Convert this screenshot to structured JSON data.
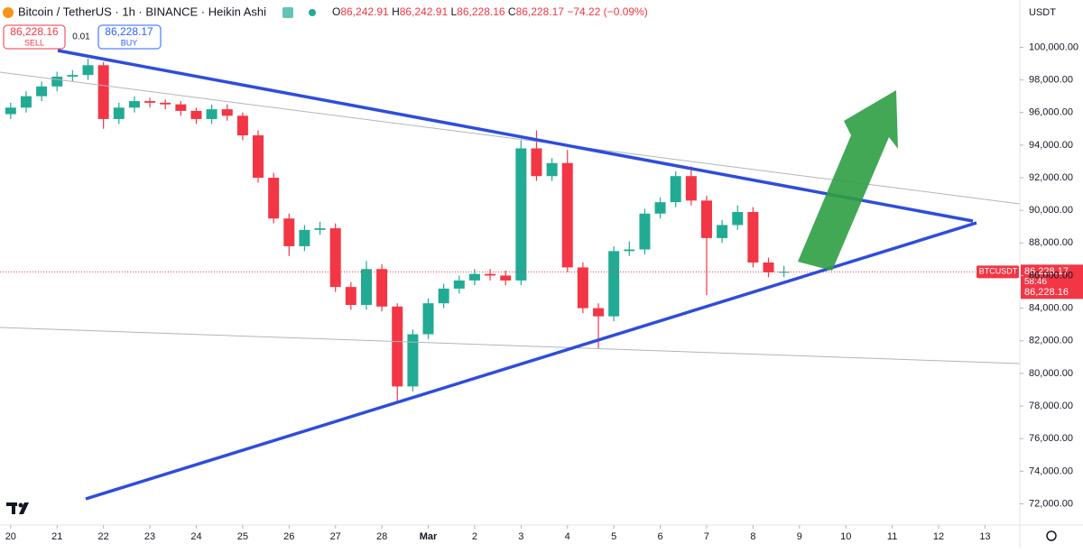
{
  "ui": {
    "symbol": "Bitcoin / TetherUS · 1h · BINANCE · Heikin Ashi",
    "ohlc": [
      {
        "key": "O",
        "text": "86,242.91"
      },
      {
        "key": "H",
        "text": "86,242.91"
      },
      {
        "key": "L",
        "text": "86,228.16"
      },
      {
        "key": "C",
        "text": "86,228.17"
      }
    ],
    "change": "−74.22 (−0.09%)",
    "sell_price": "86,228.16",
    "sell_label": "SELL",
    "spread": "0.01",
    "buy_price": "86,228.17",
    "buy_label": "BUY",
    "currency": "USDT",
    "ticker": "BTCUSDT",
    "last_price": "86,228.17",
    "countdown": "58:46",
    "bid_price": "86,228.16"
  },
  "chart_data": {
    "type": "candlestick",
    "x": [
      0,
      0.333,
      0.667,
      1,
      1.333,
      1.667,
      2,
      2.333,
      2.667,
      3,
      3.333,
      3.667,
      4,
      4.333,
      4.667,
      5,
      5.333,
      5.667,
      6,
      6.333,
      6.667,
      7,
      7.333,
      7.667,
      8,
      8.333,
      8.667,
      9,
      9.333,
      9.667,
      10,
      10.333,
      10.667,
      11,
      11.333,
      11.667,
      12,
      12.333,
      12.667,
      13,
      13.333,
      13.667,
      14,
      14.333,
      14.667,
      15,
      15.333,
      15.667,
      16,
      16.333,
      16.667
    ],
    "open": [
      95900,
      96300,
      97000,
      97600,
      98200,
      98300,
      98900,
      95600,
      96300,
      96700,
      96600,
      96500,
      96100,
      95600,
      96200,
      95800,
      94600,
      92000,
      89500,
      87800,
      88800,
      88900,
      85300,
      84200,
      86400,
      84100,
      79200,
      82400,
      84300,
      85200,
      85700,
      86100,
      86000,
      85700,
      93800,
      92100,
      92900,
      86500,
      84000,
      83500,
      87500,
      87600,
      89800,
      90500,
      92100,
      90600,
      88300,
      89100,
      89900,
      86800,
      86200
    ],
    "high": [
      96600,
      97300,
      97900,
      98500,
      98600,
      99300,
      99100,
      96600,
      97000,
      96900,
      96800,
      96700,
      96300,
      96500,
      96500,
      96000,
      94900,
      92300,
      89800,
      89100,
      89300,
      89200,
      85600,
      86900,
      86700,
      84300,
      82700,
      84600,
      85500,
      86000,
      86400,
      86400,
      86300,
      94300,
      94900,
      93200,
      93700,
      86800,
      84300,
      87800,
      88100,
      90100,
      90800,
      92400,
      92700,
      90900,
      89400,
      90300,
      90200,
      87100,
      86600
    ],
    "low": [
      95600,
      96000,
      96700,
      97300,
      97900,
      98000,
      95000,
      95300,
      96000,
      96300,
      96200,
      95800,
      95300,
      95300,
      95500,
      94300,
      91700,
      89200,
      87200,
      87500,
      88500,
      85000,
      83900,
      83900,
      83800,
      78300,
      78900,
      82100,
      84000,
      84900,
      85400,
      85700,
      85400,
      85400,
      91800,
      91800,
      86200,
      83700,
      81500,
      83200,
      87200,
      87300,
      89500,
      90200,
      90300,
      84800,
      88000,
      88800,
      86500,
      85900,
      85900
    ],
    "close": [
      96300,
      97000,
      97600,
      98200,
      98300,
      98900,
      95600,
      96300,
      96700,
      96600,
      96500,
      96100,
      95600,
      96200,
      95800,
      94600,
      92000,
      89500,
      87800,
      88800,
      88900,
      85300,
      84200,
      86400,
      84100,
      79200,
      82400,
      84300,
      85200,
      85700,
      86100,
      86000,
      85700,
      93800,
      92100,
      92900,
      86500,
      84000,
      83500,
      87500,
      87600,
      89800,
      90500,
      92100,
      90600,
      88300,
      89100,
      89900,
      86800,
      86200,
      86228.17
    ],
    "up_color": "#22ab94",
    "down_color": "#f23645",
    "xlim": [
      -0.23,
      21.75
    ],
    "xticks": [
      {
        "value": 0,
        "label": "20"
      },
      {
        "value": 1,
        "label": "21"
      },
      {
        "value": 2,
        "label": "22"
      },
      {
        "value": 3,
        "label": "23"
      },
      {
        "value": 4,
        "label": "24"
      },
      {
        "value": 5,
        "label": "25"
      },
      {
        "value": 6,
        "label": "26"
      },
      {
        "value": 7,
        "label": "27"
      },
      {
        "value": 8,
        "label": "28"
      },
      {
        "value": 9,
        "label": "Mar"
      },
      {
        "value": 10,
        "label": "2"
      },
      {
        "value": 11,
        "label": "3"
      },
      {
        "value": 12,
        "label": "4"
      },
      {
        "value": 13,
        "label": "5"
      },
      {
        "value": 14,
        "label": "6"
      },
      {
        "value": 15,
        "label": "7"
      },
      {
        "value": 16,
        "label": "8"
      },
      {
        "value": 17,
        "label": "9"
      },
      {
        "value": 18,
        "label": "10"
      },
      {
        "value": 19,
        "label": "11"
      },
      {
        "value": 20,
        "label": "12"
      },
      {
        "value": 21,
        "label": "13"
      }
    ],
    "ylim": [
      70700,
      102900
    ],
    "yticks": [
      {
        "value": 72000,
        "label": "72,000.00"
      },
      {
        "value": 74000,
        "label": "74,000.00"
      },
      {
        "value": 76000,
        "label": "76,000.00"
      },
      {
        "value": 78000,
        "label": "78,000.00"
      },
      {
        "value": 80000,
        "label": "80,000.00"
      },
      {
        "value": 82000,
        "label": "82,000.00"
      },
      {
        "value": 84000,
        "label": "84,000.00"
      },
      {
        "value": 86000,
        "label": "86,000.00"
      },
      {
        "value": 88000,
        "label": "88,000.00"
      },
      {
        "value": 90000,
        "label": "90,000.00"
      },
      {
        "value": 92000,
        "label": "92,000.00"
      },
      {
        "value": 94000,
        "label": "94,000.00"
      },
      {
        "value": 96000,
        "label": "96,000.00"
      },
      {
        "value": 98000,
        "label": "98,000.00"
      },
      {
        "value": 100000,
        "label": "100,000.00"
      }
    ]
  }
}
